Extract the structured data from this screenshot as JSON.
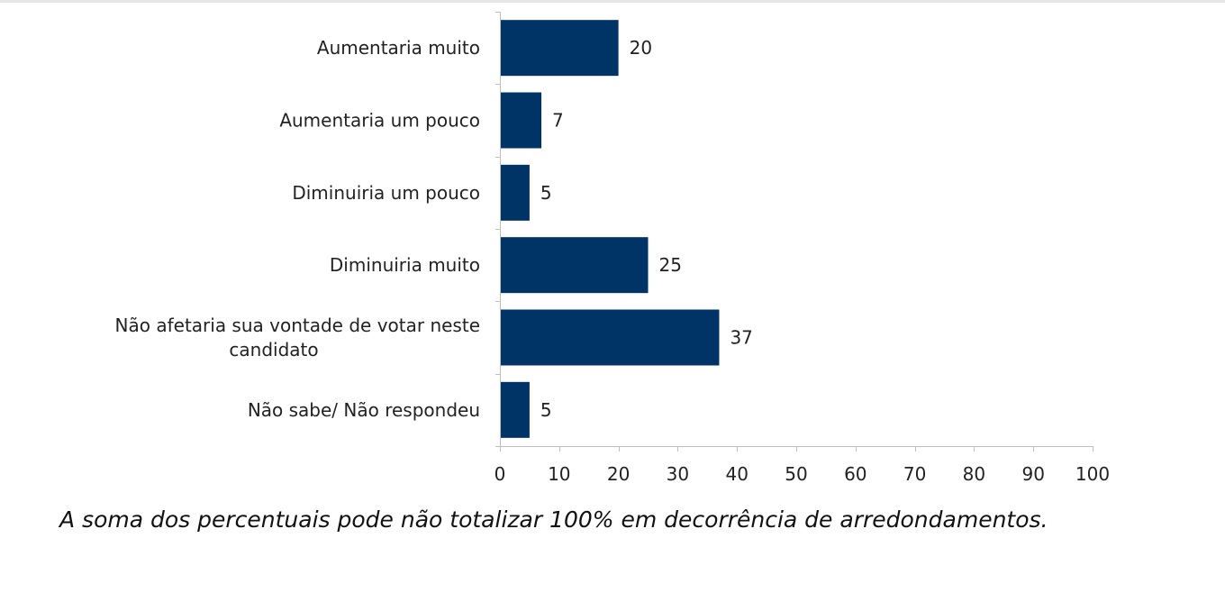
{
  "chart_data": {
    "type": "bar",
    "orientation": "horizontal",
    "categories": [
      "Aumentaria muito",
      "Aumentaria um pouco",
      "Diminuiria um pouco",
      "Diminuiria muito",
      "Não afetaria sua vontade de votar neste candidato",
      "Não sabe/ Não respondeu"
    ],
    "category_lines": [
      [
        "Aumentaria muito"
      ],
      [
        "Aumentaria um pouco"
      ],
      [
        "Diminuiria um pouco"
      ],
      [
        "Diminuiria muito"
      ],
      [
        "Não afetaria sua vontade de votar neste",
        "candidato"
      ],
      [
        "Não sabe/ Não respondeu"
      ]
    ],
    "values": [
      20,
      7,
      5,
      25,
      37,
      5
    ],
    "xlim": [
      0,
      100
    ],
    "xticks": [
      0,
      10,
      20,
      30,
      40,
      50,
      60,
      70,
      80,
      90,
      100
    ],
    "bar_color": "#003366",
    "grid": false,
    "data_labels": true,
    "title": "",
    "xlabel": "",
    "ylabel": ""
  },
  "footnote": "A soma dos percentuais pode não totalizar 100% em decorrência de arredondamentos."
}
